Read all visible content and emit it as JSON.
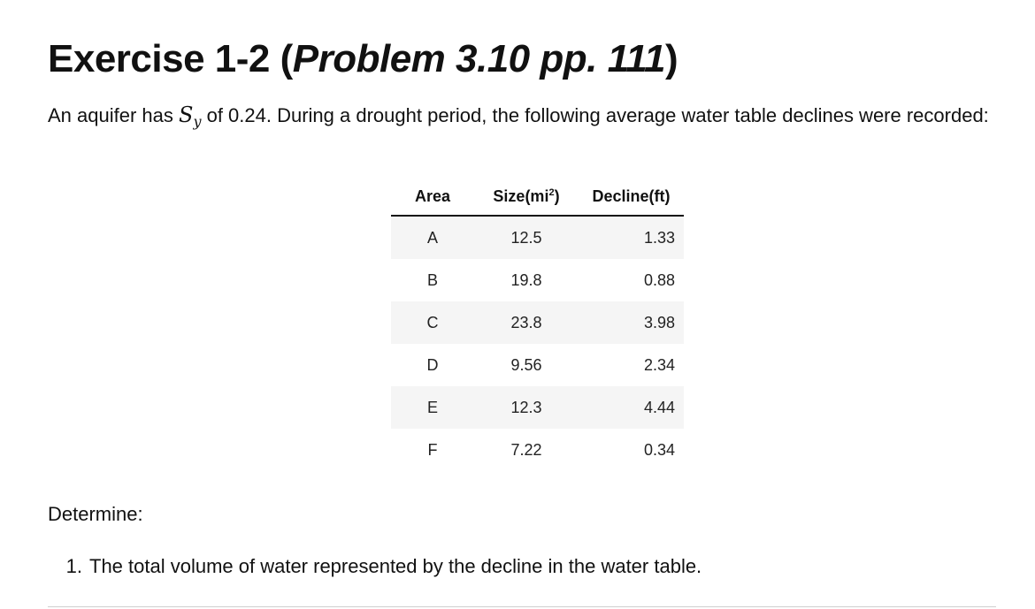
{
  "heading": {
    "prefix": "Exercise 1-2 (",
    "italic": "Problem 3.10 pp. 111",
    "suffix": ")"
  },
  "intro": {
    "before": "An aquifer has ",
    "symbol_base": "S",
    "symbol_sub": "y",
    "after": " of 0.24. During a drought period, the following average water table declines were recorded:"
  },
  "table": {
    "headers": {
      "area": "Area",
      "size_prefix": "Size(mi",
      "size_sup": "2",
      "size_suffix": ")",
      "decline": "Decline(ft)"
    },
    "rows": [
      {
        "area": "A",
        "size": "12.5",
        "decline": "1.33"
      },
      {
        "area": "B",
        "size": "19.8",
        "decline": "0.88"
      },
      {
        "area": "C",
        "size": "23.8",
        "decline": "3.98"
      },
      {
        "area": "D",
        "size": "9.56",
        "decline": "2.34"
      },
      {
        "area": "E",
        "size": "12.3",
        "decline": "4.44"
      },
      {
        "area": "F",
        "size": "7.22",
        "decline": "0.34"
      }
    ]
  },
  "determine_label": "Determine:",
  "tasks": [
    {
      "number": "1.",
      "text": "The total volume of water represented by the decline in the water table."
    }
  ]
}
